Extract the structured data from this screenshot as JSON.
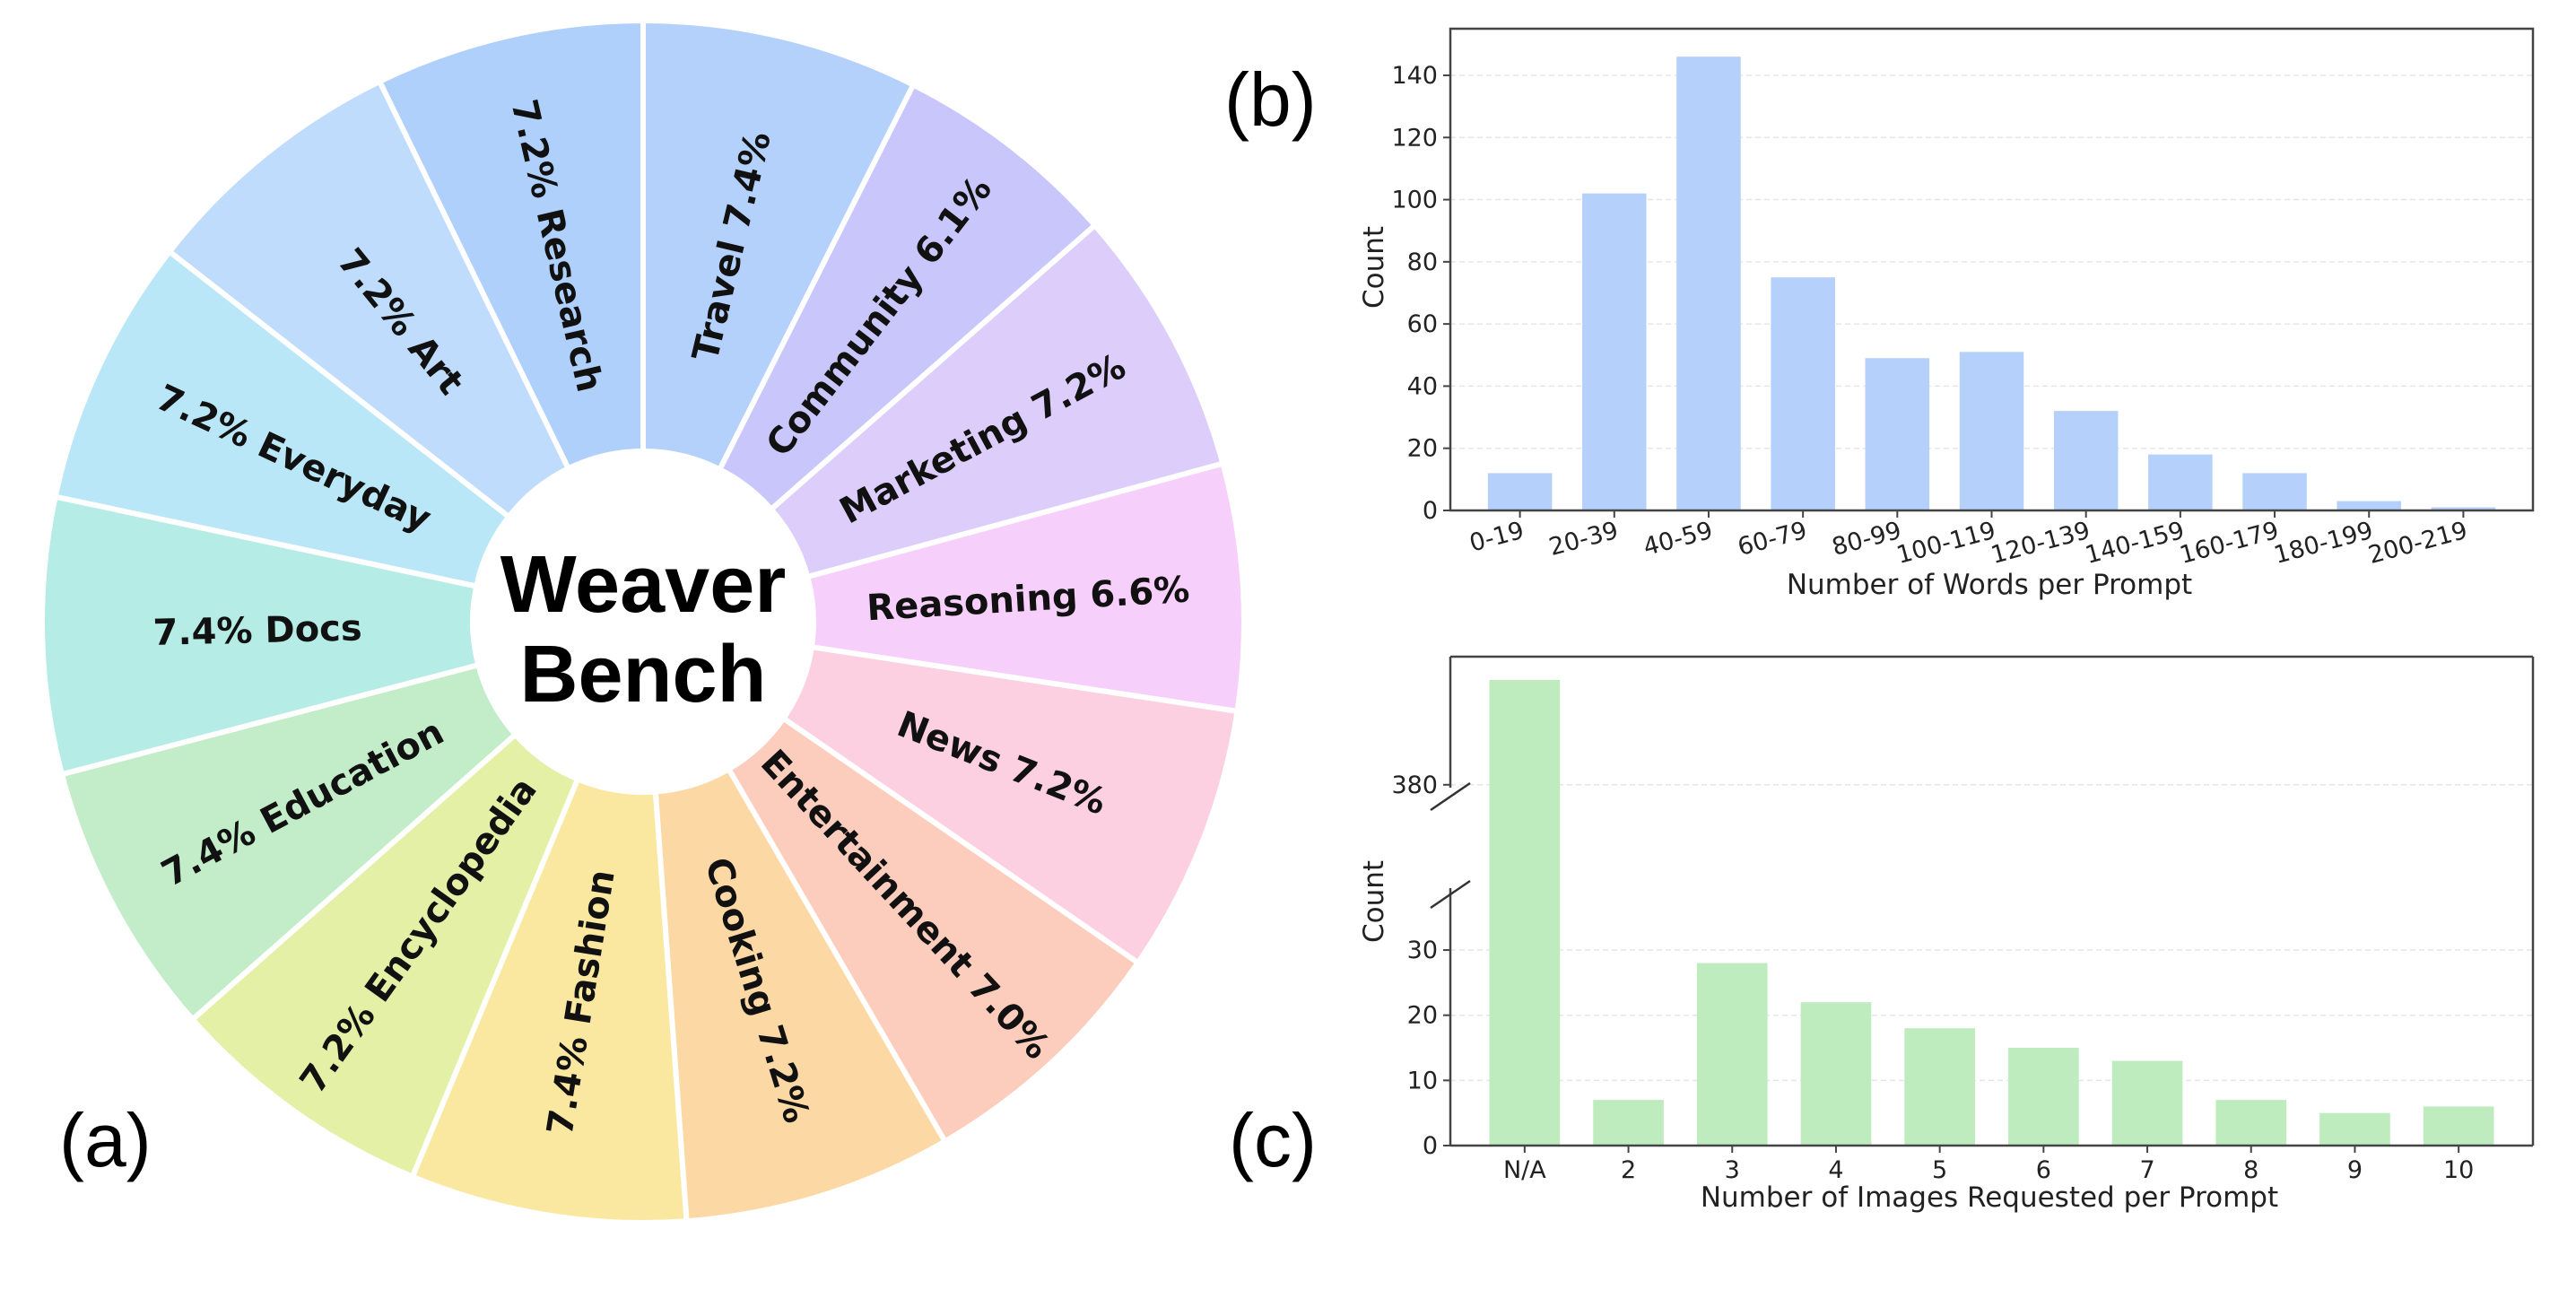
{
  "chart_data": [
    {
      "type": "pie",
      "panel_label": "(a)",
      "title": "Weaver Bench",
      "center_title_lines": [
        "Weaver",
        "Bench"
      ],
      "slices": [
        {
          "name": "Travel",
          "value": 7.4,
          "label": "Travel 7.4%",
          "color": "#b3d1fb"
        },
        {
          "name": "Community",
          "value": 6.1,
          "label": "Community 6.1%",
          "color": "#c9c6fb"
        },
        {
          "name": "Marketing",
          "value": 7.2,
          "label": "Marketing 7.2%",
          "color": "#dccdfb"
        },
        {
          "name": "Reasoning",
          "value": 6.6,
          "label": "Reasoning 6.6%",
          "color": "#f6cffb"
        },
        {
          "name": "News",
          "value": 7.2,
          "label": "News 7.2%",
          "color": "#fcd0e0"
        },
        {
          "name": "Entertainment",
          "value": 7.0,
          "label": "Entertainment 7.0%",
          "color": "#fccdbd"
        },
        {
          "name": "Cooking",
          "value": 7.2,
          "label": "Cooking 7.2%",
          "color": "#fcd9a4"
        },
        {
          "name": "Fashion",
          "value": 7.4,
          "label": "7.4% Fashion",
          "color": "#fbe8a0"
        },
        {
          "name": "Encyclopedia",
          "value": 7.2,
          "label": "7.2% Encyclopedia",
          "color": "#e3f0a6"
        },
        {
          "name": "Education",
          "value": 7.4,
          "label": "7.4% Education",
          "color": "#c3ecc8"
        },
        {
          "name": "Docs",
          "value": 7.4,
          "label": "7.4% Docs",
          "color": "#b5ece6"
        },
        {
          "name": "Everyday",
          "value": 7.2,
          "label": "7.2% Everyday",
          "color": "#b9e7f7"
        },
        {
          "name": "Art",
          "value": 7.2,
          "label": "7.2% Art",
          "color": "#bfdcfc"
        },
        {
          "name": "Research",
          "value": 7.2,
          "label": "7.2% Research",
          "color": "#afd0fb"
        }
      ]
    },
    {
      "type": "bar",
      "panel_label": "(b)",
      "xlabel": "Number of Words per Prompt",
      "ylabel": "Count",
      "color": "#b5d0fa",
      "categories": [
        "0-19",
        "20-39",
        "40-59",
        "60-79",
        "80-99",
        "100-119",
        "120-139",
        "140-159",
        "160-179",
        "180-199",
        "200-219"
      ],
      "values": [
        12,
        102,
        146,
        75,
        49,
        51,
        32,
        18,
        12,
        3,
        1
      ],
      "ylim": [
        0,
        155
      ],
      "yticks": [
        0,
        20,
        40,
        60,
        80,
        100,
        120,
        140
      ]
    },
    {
      "type": "bar",
      "panel_label": "(c)",
      "xlabel": "Number of Images Requested per Prompt",
      "ylabel": "Count",
      "color": "#bfecbf",
      "categories": [
        "N/A",
        "2",
        "3",
        "4",
        "5",
        "6",
        "7",
        "8",
        "9",
        "10"
      ],
      "values": [
        null,
        7,
        28,
        22,
        18,
        15,
        13,
        7,
        5,
        6
      ],
      "broken_axis": true,
      "lower_ylim": [
        0,
        34
      ],
      "upper_ylim": [
        370,
        395
      ],
      "yticks": [
        0,
        10,
        20,
        30,
        380
      ]
    }
  ]
}
